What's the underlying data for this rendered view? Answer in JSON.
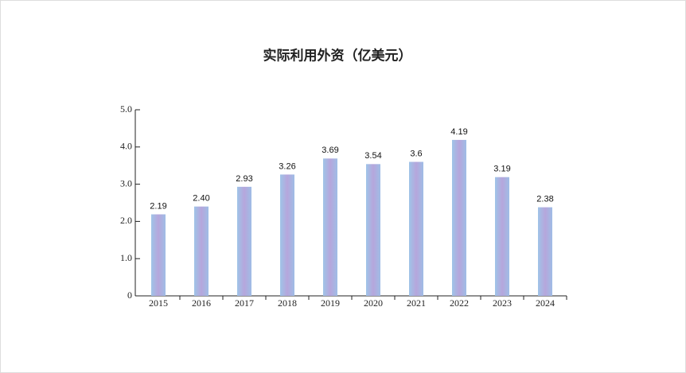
{
  "chart_data": {
    "type": "bar",
    "title": "实际利用外资（亿美元）",
    "categories": [
      "2015",
      "2016",
      "2017",
      "2018",
      "2019",
      "2020",
      "2021",
      "2022",
      "2023",
      "2024"
    ],
    "values": [
      2.19,
      2.4,
      2.93,
      3.26,
      3.69,
      3.54,
      3.6,
      4.19,
      3.19,
      2.38
    ],
    "value_labels": [
      "2.19",
      "2.40",
      "2.93",
      "3.26",
      "3.69",
      "3.54",
      "3.6",
      "4.19",
      "3.19",
      "2.38"
    ],
    "color": "#a9a9dc",
    "ylim": [
      0,
      5
    ],
    "yticks": [
      0,
      {
        "value": 1,
        "label": "1.0"
      },
      {
        "value": 2,
        "label": "2.0"
      },
      {
        "value": 3,
        "label": "3.0"
      },
      {
        "value": 4,
        "label": "4.0"
      },
      {
        "value": 5,
        "label": "5.0"
      }
    ],
    "grid": false
  }
}
